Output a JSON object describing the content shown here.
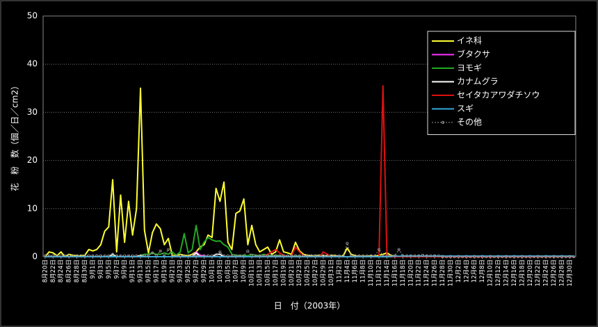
{
  "chart_data": {
    "type": "line",
    "x_label": "日　付（2003年）",
    "y_label": "花　粉　数（個／日／cm2）",
    "ylim": [
      0,
      50
    ],
    "yticks": [
      0,
      10,
      20,
      30,
      40,
      50
    ],
    "grid": true,
    "legend": "upper right",
    "categories": [
      "8月20日",
      null,
      "8月22日",
      null,
      "8月24日",
      null,
      "8月26日",
      null,
      "8月28日",
      null,
      "8月30日",
      null,
      "9月1日",
      null,
      "9月3日",
      null,
      "9月5日",
      null,
      "9月7日",
      null,
      "9月9日",
      null,
      "9月11日",
      null,
      "9月13日",
      null,
      "9月15日",
      null,
      "9月17日",
      null,
      "9月19日",
      null,
      "9月21日",
      null,
      "9月23日",
      null,
      "9月25日",
      null,
      "9月27日",
      null,
      "9月29日",
      null,
      "10月1日",
      null,
      "10月3日",
      null,
      "10月5日",
      null,
      "10月7日",
      null,
      "10月9日",
      null,
      "10月11日",
      null,
      "10月13日",
      null,
      "10月15日",
      null,
      "10月17日",
      null,
      "10月19日",
      null,
      "10月21日",
      null,
      "10月23日",
      null,
      "10月25日",
      null,
      "10月27日",
      null,
      "10月29日",
      null,
      "10月31日",
      null,
      "11月2日",
      null,
      "11月4日",
      null,
      "11月6日",
      null,
      "11月8日",
      null,
      "11月10日",
      null,
      "11月12日",
      null,
      "11月14日",
      null,
      "11月16日",
      null,
      "11月18日",
      null,
      "11月20日",
      null,
      "11月22日",
      null,
      "11月24日",
      null,
      "11月26日",
      null,
      "11月28日",
      null,
      "11月30日",
      null,
      "12月2日",
      null,
      "12月4日",
      null,
      "12月6日",
      null,
      "12月8日",
      null,
      "12月10日",
      null,
      "12月12日",
      null,
      "12月14日",
      null,
      "12月16日",
      null,
      "12月18日",
      null,
      "12月20日",
      null,
      "12月22日",
      null,
      "12月24日",
      null,
      "12月26日",
      null,
      "12月28日",
      null,
      "12月30日",
      null
    ],
    "series": [
      {
        "name": "イネ科",
        "color": "#ffff33",
        "values": [
          0,
          1,
          0.8,
          0.2,
          1,
          0,
          0.5,
          0.3,
          0.2,
          0.2,
          0.3,
          1.5,
          1.2,
          1.5,
          2.5,
          5.3,
          6.2,
          16,
          1,
          12.8,
          3,
          11.5,
          4.5,
          10,
          35,
          5.5,
          0.8,
          5,
          6.8,
          5.8,
          2.5,
          3.8,
          0.3,
          0.2,
          0.5,
          0.3,
          0.2,
          0.5,
          1,
          2,
          2.5,
          4.5,
          4,
          14.2,
          11.5,
          15.5,
          3,
          1.5,
          9,
          9.5,
          12,
          2.5,
          6.5,
          2.5,
          1,
          1.5,
          2,
          0.5,
          1,
          3.5,
          1,
          0.8,
          0.5,
          3,
          1.2,
          0.5,
          0.3,
          0.2,
          0.2,
          0.3,
          0.2,
          0.2,
          0.3,
          0.2,
          0.1,
          0.2,
          1.8,
          0.5,
          0.2,
          0.1,
          0.1,
          0.1,
          0.2,
          0.1,
          0.3,
          0.5,
          0.8,
          0.3,
          0.1,
          0,
          0,
          0,
          0,
          0,
          0,
          0,
          0,
          0,
          0,
          0,
          0,
          0,
          0,
          0,
          0,
          0,
          0,
          0,
          0,
          0,
          0,
          0,
          0,
          0,
          0,
          0,
          0,
          0,
          0,
          0,
          0,
          0,
          0,
          0,
          0,
          0,
          0,
          0,
          0,
          0,
          0,
          0,
          0,
          0
        ]
      },
      {
        "name": "ブタクサ",
        "color": "#ff33ff",
        "values": [
          0,
          0,
          0,
          0,
          0,
          0,
          0,
          0,
          0,
          0,
          0,
          0,
          0,
          0,
          0,
          0,
          0,
          0,
          0,
          0,
          0,
          0,
          0,
          0,
          0,
          0,
          0,
          0,
          0,
          0,
          0,
          0,
          0,
          0,
          0,
          0,
          0,
          0,
          1,
          0.3,
          0.2,
          0,
          0,
          0,
          0,
          0,
          0,
          0,
          0,
          0,
          0,
          0,
          0,
          0,
          0,
          0,
          0,
          0,
          0,
          0,
          0,
          0,
          0,
          0,
          0,
          0,
          0,
          0,
          0,
          0,
          0,
          0,
          0,
          0,
          0,
          0,
          0,
          0,
          0,
          0,
          0,
          0,
          0,
          0,
          0,
          0,
          0,
          0,
          0,
          0,
          0,
          0,
          0,
          0,
          0,
          0,
          0,
          0,
          0,
          0,
          0,
          0,
          0,
          0,
          0,
          0,
          0,
          0,
          0,
          0,
          0,
          0,
          0,
          0,
          0,
          0,
          0,
          0,
          0,
          0,
          0,
          0,
          0,
          0,
          0,
          0,
          0,
          0,
          0,
          0,
          0,
          0,
          0,
          0
        ]
      },
      {
        "name": "ヨモギ",
        "color": "#22aa22",
        "values": [
          0,
          0,
          0,
          0,
          0,
          0,
          0,
          0,
          0,
          0,
          0,
          0,
          0,
          0,
          0,
          0,
          0,
          0.2,
          0,
          0,
          0,
          0,
          0,
          0,
          0.3,
          0.5,
          0.5,
          0.8,
          0.5,
          0.5,
          0.8,
          0.5,
          1,
          0.3,
          1,
          4.8,
          0.8,
          1.5,
          6.5,
          1.5,
          3,
          4,
          3.5,
          3.2,
          3.3,
          2.5,
          2,
          0.5,
          0.3,
          0.2,
          0.3,
          0.2,
          0.5,
          0.3,
          0.2,
          0.5,
          0.3,
          0.2,
          0.3,
          0.2,
          0.2,
          0.1,
          0.1,
          0.2,
          0.1,
          0,
          0,
          0,
          0.1,
          0,
          0,
          0,
          0,
          0,
          0,
          0,
          0,
          0,
          0,
          0,
          0,
          0,
          0,
          0,
          0,
          0,
          0,
          0,
          0,
          0,
          0,
          0,
          0,
          0,
          0,
          0,
          0,
          0,
          0,
          0,
          0,
          0,
          0,
          0,
          0,
          0,
          0,
          0,
          0,
          0,
          0,
          0,
          0,
          0,
          0,
          0,
          0,
          0,
          0,
          0,
          0,
          0,
          0,
          0,
          0,
          0,
          0,
          0,
          0,
          0,
          0,
          0,
          0,
          0
        ]
      },
      {
        "name": "カナムグラ",
        "color": "#ffffff",
        "values": [
          0,
          0,
          0,
          0,
          0,
          0,
          0,
          0,
          0,
          0,
          0,
          0,
          0,
          0,
          0,
          0,
          0,
          0.5,
          0,
          0,
          0,
          0,
          0,
          0,
          0.3,
          0,
          0,
          0,
          0,
          0,
          0,
          0,
          0,
          0,
          0,
          0,
          0,
          0,
          0.8,
          0,
          0,
          0,
          0,
          0.5,
          0.5,
          0,
          0,
          0,
          0,
          0,
          0,
          0,
          0,
          0,
          0,
          0,
          0,
          0,
          0,
          0,
          0,
          0,
          0,
          0,
          0,
          0,
          0,
          0,
          0,
          0,
          0,
          0,
          0,
          0,
          0,
          0,
          0,
          0,
          0,
          0,
          0,
          0,
          0,
          0,
          0,
          0,
          0,
          0,
          0,
          0,
          0,
          0,
          0,
          0,
          0,
          0,
          0,
          0,
          0,
          0,
          0,
          0,
          0,
          0,
          0,
          0,
          0,
          0,
          0,
          0,
          0,
          0,
          0,
          0,
          0,
          0,
          0,
          0,
          0,
          0,
          0,
          0,
          0,
          0,
          0,
          0,
          0,
          0,
          0,
          0,
          0,
          0,
          0,
          0
        ]
      },
      {
        "name": "セイタカアワダチソウ",
        "color": "#dd1111",
        "values": [
          0,
          0,
          0,
          0,
          0,
          0,
          0,
          0,
          0,
          0,
          0,
          0,
          0,
          0,
          0,
          0,
          0,
          0,
          0,
          0,
          0,
          0,
          0,
          0,
          0,
          0,
          0,
          0,
          0,
          0,
          0,
          0,
          0,
          0,
          0,
          0,
          0,
          0,
          0,
          0,
          0,
          0,
          0,
          0,
          0,
          0,
          0,
          0,
          0,
          0,
          0,
          0,
          0,
          0,
          0,
          0,
          0.5,
          1,
          1.5,
          0.8,
          0.3,
          0,
          0.2,
          2,
          1,
          0.2,
          0,
          0,
          0,
          0,
          1,
          0.5,
          0,
          0,
          0,
          0,
          0,
          0,
          0,
          0,
          0,
          0,
          0,
          0,
          0,
          35.5,
          0.3,
          0,
          0,
          0,
          0,
          0,
          0,
          0,
          0,
          0,
          0,
          0,
          0,
          0,
          0,
          0,
          0,
          0,
          0,
          0,
          0,
          0,
          0,
          0,
          0,
          0,
          0,
          0,
          0,
          0,
          0,
          0,
          0,
          0,
          0,
          0,
          0,
          0,
          0,
          0,
          0,
          0,
          0,
          0,
          0,
          0,
          0,
          0
        ]
      },
      {
        "name": "スギ",
        "color": "#33aadd",
        "values": [
          0,
          0,
          0,
          0,
          0,
          0,
          0,
          0,
          0,
          0,
          0,
          0,
          0,
          0,
          0,
          0,
          0,
          0,
          0,
          0,
          0,
          0,
          0,
          0,
          0,
          0,
          0,
          0,
          0,
          0,
          0,
          0,
          0,
          0,
          0,
          0,
          0,
          0,
          0,
          0,
          0,
          0,
          0,
          0,
          0,
          0,
          0,
          0,
          0,
          0,
          0,
          0,
          0,
          0,
          0,
          0,
          0,
          0,
          0,
          0,
          0,
          0,
          0,
          0,
          0,
          0,
          0,
          0,
          0,
          0,
          0,
          0,
          0,
          0,
          0,
          0,
          0,
          0,
          0,
          0,
          0,
          0,
          0,
          0,
          0,
          0,
          0,
          0,
          0.2,
          0.1,
          0.2,
          0.1,
          0.2,
          0.1,
          0.2,
          0.1,
          0.2,
          0.1,
          0.2,
          0.1,
          0.2,
          0.1,
          0.2,
          0.1,
          0.2,
          0.1,
          0.2,
          0.1,
          0.2,
          0.1,
          0.2,
          0.1,
          0.2,
          0.1,
          0.2,
          0.1,
          0.2,
          0.1,
          0.2,
          0.1,
          0.2,
          0.1,
          0.2,
          0.1,
          0.2,
          0.1,
          0.2,
          0.1,
          0.2,
          0.1,
          0.2,
          0.1,
          0.2,
          0.1
        ]
      },
      {
        "name": "その他",
        "color": "#999999",
        "dashed": true,
        "marker": true,
        "values": [
          0.2,
          0.2,
          0.2,
          0.2,
          0.2,
          0.2,
          0.2,
          0.2,
          0.2,
          0.2,
          0.2,
          0.2,
          0.2,
          0.2,
          0.2,
          0.2,
          0.2,
          0.5,
          0.2,
          0.2,
          0.2,
          0.2,
          0.2,
          0.2,
          0.2,
          0.2,
          0.2,
          0.8,
          0.2,
          1.2,
          0.2,
          1.5,
          0.2,
          0.2,
          0.2,
          0.2,
          0.2,
          0.2,
          0.2,
          0.2,
          0.2,
          0.2,
          0.2,
          0.2,
          1,
          0.2,
          0.2,
          0.2,
          0.2,
          0.2,
          0.2,
          1.2,
          0.2,
          0.2,
          0.2,
          0.2,
          0.2,
          0.2,
          0.2,
          0.2,
          0.2,
          0.2,
          0.2,
          0.2,
          0.2,
          0.2,
          0.2,
          0.2,
          0.2,
          0.2,
          0.2,
          0.2,
          0.2,
          0.2,
          0.2,
          0.2,
          2.8,
          0.2,
          0.2,
          0.2,
          0.2,
          0.2,
          0.2,
          0.2,
          1.5,
          0.2,
          0.2,
          0.2,
          0.2,
          1.5,
          0.2,
          0.2,
          0.2,
          0.2,
          0.2,
          0.3,
          0.2,
          0.2,
          0.2,
          0.2,
          0,
          0,
          0,
          0,
          0,
          0,
          0,
          0,
          0,
          0,
          0,
          0,
          0,
          0,
          0,
          0,
          0,
          0,
          0,
          0,
          0,
          0,
          0,
          0,
          0,
          0,
          0,
          0,
          0,
          0,
          0,
          0,
          0,
          0
        ]
      }
    ]
  }
}
